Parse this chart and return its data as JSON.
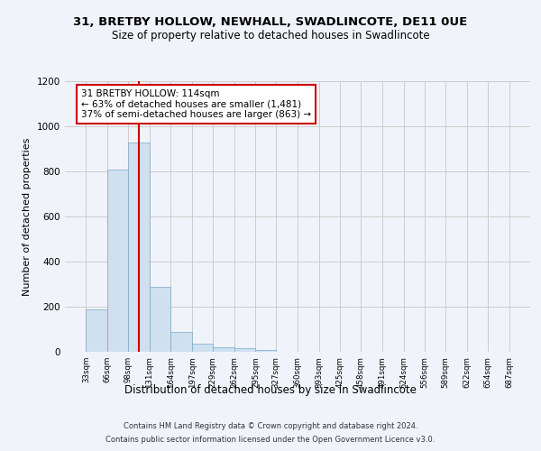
{
  "title": "31, BRETBY HOLLOW, NEWHALL, SWADLINCOTE, DE11 0UE",
  "subtitle": "Size of property relative to detached houses in Swadlincote",
  "xlabel": "Distribution of detached houses by size in Swadlincote",
  "ylabel": "Number of detached properties",
  "bin_edges": [
    33,
    66,
    98,
    131,
    164,
    197,
    229,
    262,
    295,
    327,
    360,
    393,
    425,
    458,
    491,
    524,
    556,
    589,
    622,
    654,
    687
  ],
  "bar_heights": [
    190,
    810,
    930,
    290,
    88,
    35,
    20,
    18,
    10,
    0,
    0,
    0,
    0,
    0,
    0,
    0,
    0,
    0,
    0,
    0
  ],
  "bar_color": "#cfe0ef",
  "bar_edgecolor": "#7aaac8",
  "grid_color": "#cccccc",
  "bg_color": "#f0f4fa",
  "vline_x": 114,
  "vline_color": "#cc0000",
  "annotation_text": "31 BRETBY HOLLOW: 114sqm\n← 63% of detached houses are smaller (1,481)\n37% of semi-detached houses are larger (863) →",
  "ylim": [
    0,
    1200
  ],
  "yticks": [
    0,
    200,
    400,
    600,
    800,
    1000,
    1200
  ],
  "footer_line1": "Contains HM Land Registry data © Crown copyright and database right 2024.",
  "footer_line2": "Contains public sector information licensed under the Open Government Licence v3.0."
}
